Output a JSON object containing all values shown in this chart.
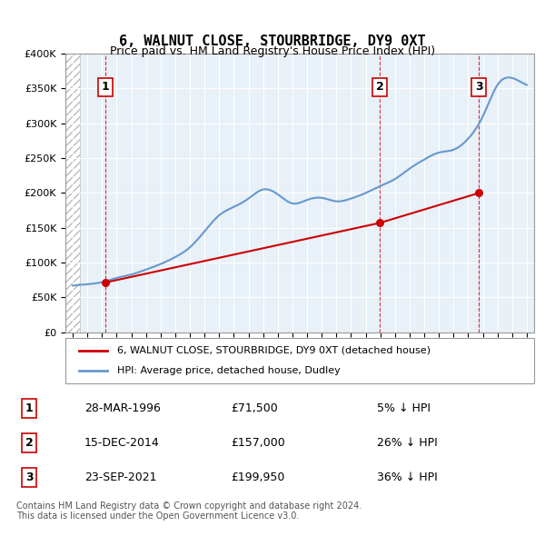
{
  "title": "6, WALNUT CLOSE, STOURBRIDGE, DY9 0XT",
  "subtitle": "Price paid vs. HM Land Registry's House Price Index (HPI)",
  "xlabel": "",
  "ylabel": "",
  "ylim": [
    0,
    400000
  ],
  "yticks": [
    0,
    50000,
    100000,
    150000,
    200000,
    250000,
    300000,
    350000,
    400000
  ],
  "ytick_labels": [
    "£0",
    "£50K",
    "£100K",
    "£150K",
    "£200K",
    "£250K",
    "£300K",
    "£350K",
    "£400K"
  ],
  "hpi_color": "#6699cc",
  "price_color": "#cc0000",
  "marker_color": "#cc0000",
  "dashed_line_color": "#cc0000",
  "bg_hatch_color": "#cccccc",
  "grid_color": "#cccccc",
  "sale_dates": [
    1996.23,
    2014.96,
    2021.73
  ],
  "sale_prices": [
    71500,
    157000,
    199950
  ],
  "sale_labels": [
    "1",
    "2",
    "3"
  ],
  "legend_items": [
    "6, WALNUT CLOSE, STOURBRIDGE, DY9 0XT (detached house)",
    "HPI: Average price, detached house, Dudley"
  ],
  "table_rows": [
    [
      "1",
      "28-MAR-1996",
      "£71,500",
      "5% ↓ HPI"
    ],
    [
      "2",
      "15-DEC-2014",
      "£157,000",
      "26% ↓ HPI"
    ],
    [
      "3",
      "23-SEP-2021",
      "£199,950",
      "36% ↓ HPI"
    ]
  ],
  "footer": "Contains HM Land Registry data © Crown copyright and database right 2024.\nThis data is licensed under the Open Government Licence v3.0.",
  "hpi_years": [
    1994,
    1995,
    1996,
    1997,
    1998,
    1999,
    2000,
    2001,
    2002,
    2003,
    2004,
    2005,
    2006,
    2007,
    2008,
    2009,
    2010,
    2011,
    2012,
    2013,
    2014,
    2015,
    2016,
    2017,
    2018,
    2019,
    2020,
    2021,
    2022,
    2023,
    2024,
    2025
  ],
  "hpi_values": [
    67000,
    69000,
    72000,
    78000,
    83000,
    90000,
    98000,
    108000,
    122000,
    145000,
    168000,
    180000,
    192000,
    205000,
    198000,
    185000,
    190000,
    193000,
    188000,
    192000,
    200000,
    210000,
    220000,
    235000,
    248000,
    258000,
    262000,
    278000,
    310000,
    355000,
    365000,
    355000
  ],
  "xmin": 1993.5,
  "xmax": 2025.5
}
